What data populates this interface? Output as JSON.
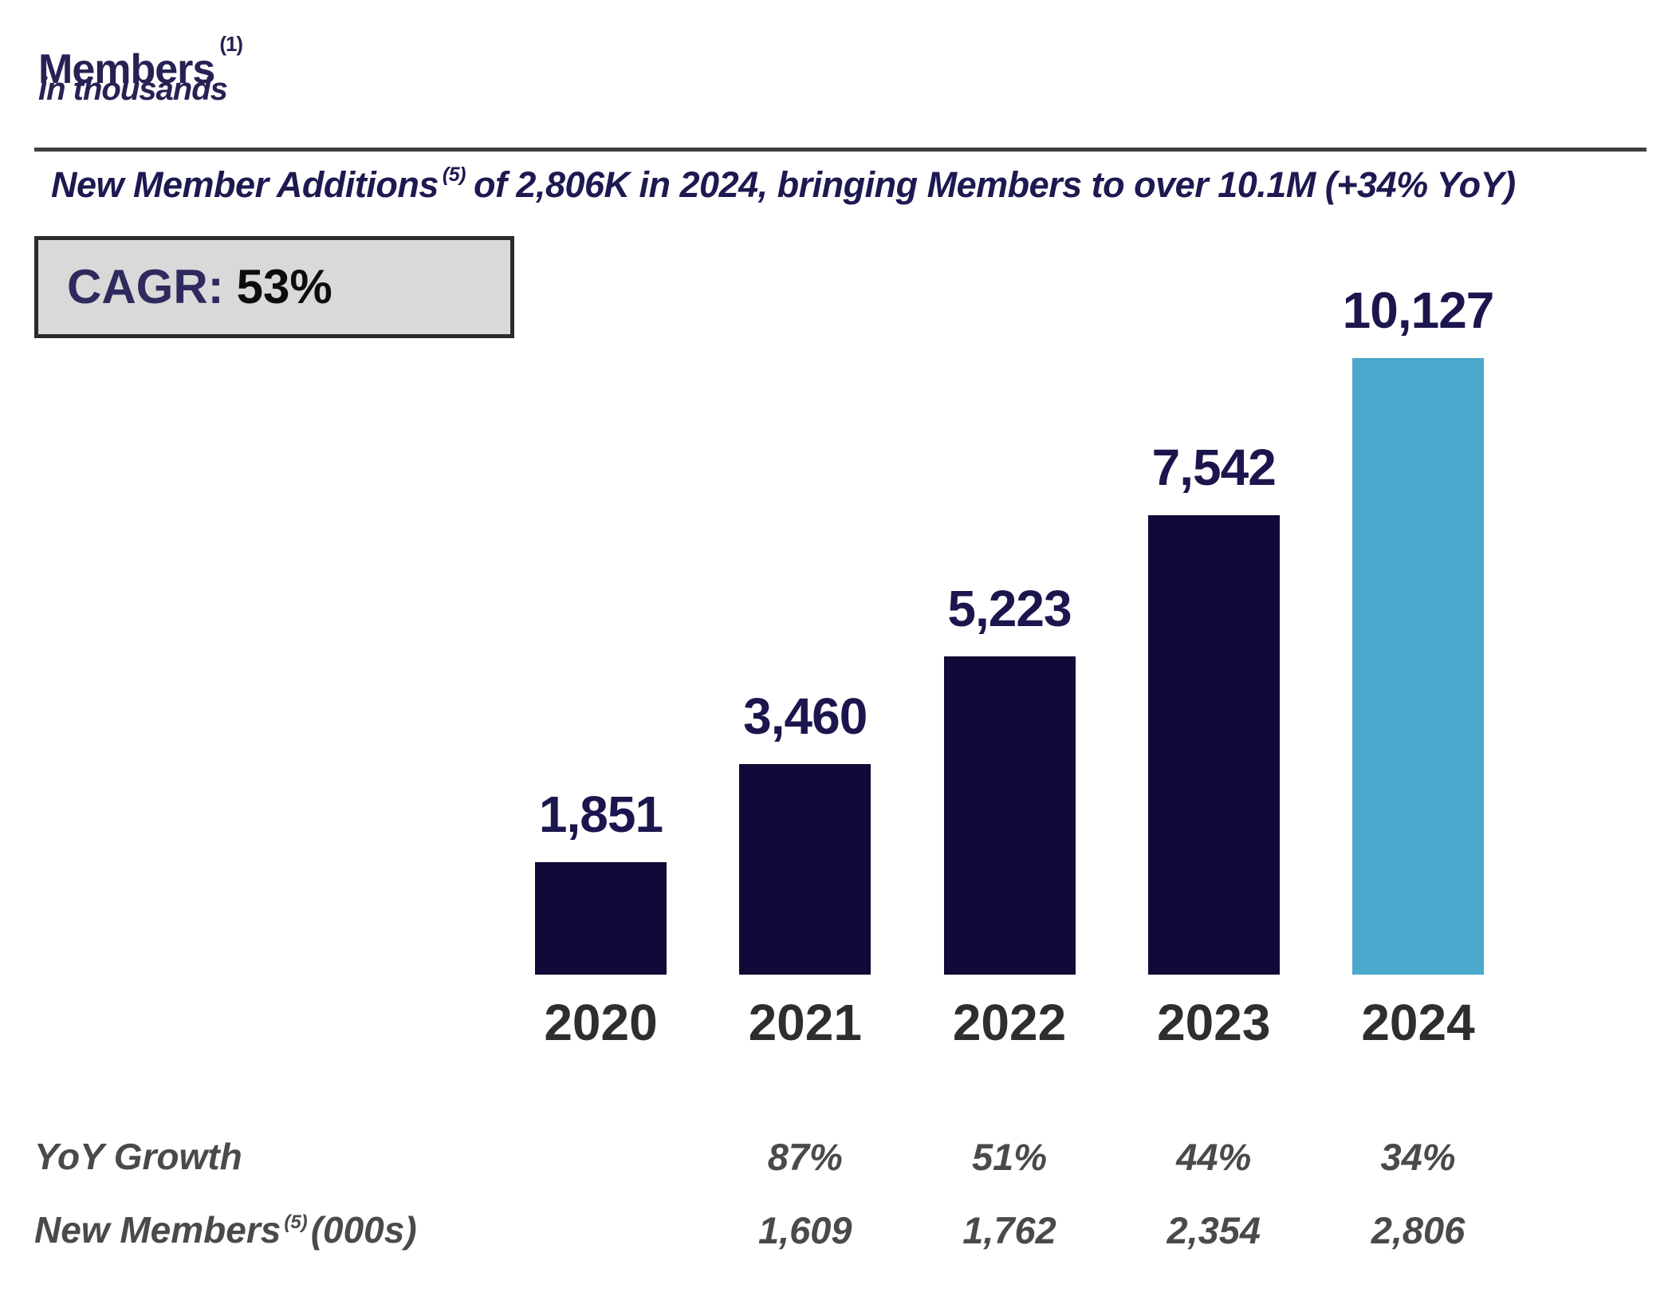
{
  "header": {
    "title": "Members",
    "title_superscript": "(1)",
    "unit_note": "in thousands"
  },
  "highlight": {
    "lead": "New Member Additions",
    "lead_superscript": "(5)",
    "body": "of 2,806K in 2024, bringing Members to over 10.1M",
    "yoy_note": "(+34% YoY)"
  },
  "cagr_badge": {
    "label": "CAGR:",
    "value": "53%"
  },
  "colors": {
    "navy_bar": "#100A38",
    "highlight_blue": "#4AA8CC",
    "value_label_navy": "#1C164E",
    "title_navy": "#272254",
    "year_label_gray": "#2E2E2E",
    "table_gray": "#4A4A4A",
    "badge_bg": "#D9D9D9",
    "badge_border": "#2B2B2B",
    "divider_gray": "#3F3F3F"
  },
  "chart_data": {
    "type": "bar",
    "title": "Members (in thousands)",
    "categories": [
      "2020",
      "2021",
      "2022",
      "2023",
      "2024"
    ],
    "values": [
      1851,
      3460,
      5223,
      7542,
      10127
    ],
    "value_labels": [
      "1,851",
      "3,460",
      "5,223",
      "7,542",
      "10,127"
    ],
    "bar_colors": [
      "#100A38",
      "#100A38",
      "#100A38",
      "#100A38",
      "#4AA8CC"
    ],
    "ylim": [
      0,
      10127
    ],
    "grid": false,
    "legend": false,
    "annotations": {
      "cagr": "CAGR: 53%",
      "headline": "New Member Additions (5) of 2,806K in 2024, bringing Members to over 10.1M (+34% YoY)"
    },
    "table_rows": [
      {
        "label": "YoY Growth",
        "label_superscript": "",
        "label_suffix": "",
        "values": [
          "",
          "87%",
          "51%",
          "44%",
          "34%"
        ]
      },
      {
        "label": "New Members",
        "label_superscript": "(5)",
        "label_suffix": "(000s)",
        "values": [
          "",
          "1,609",
          "1,762",
          "2,354",
          "2,806"
        ]
      }
    ]
  }
}
